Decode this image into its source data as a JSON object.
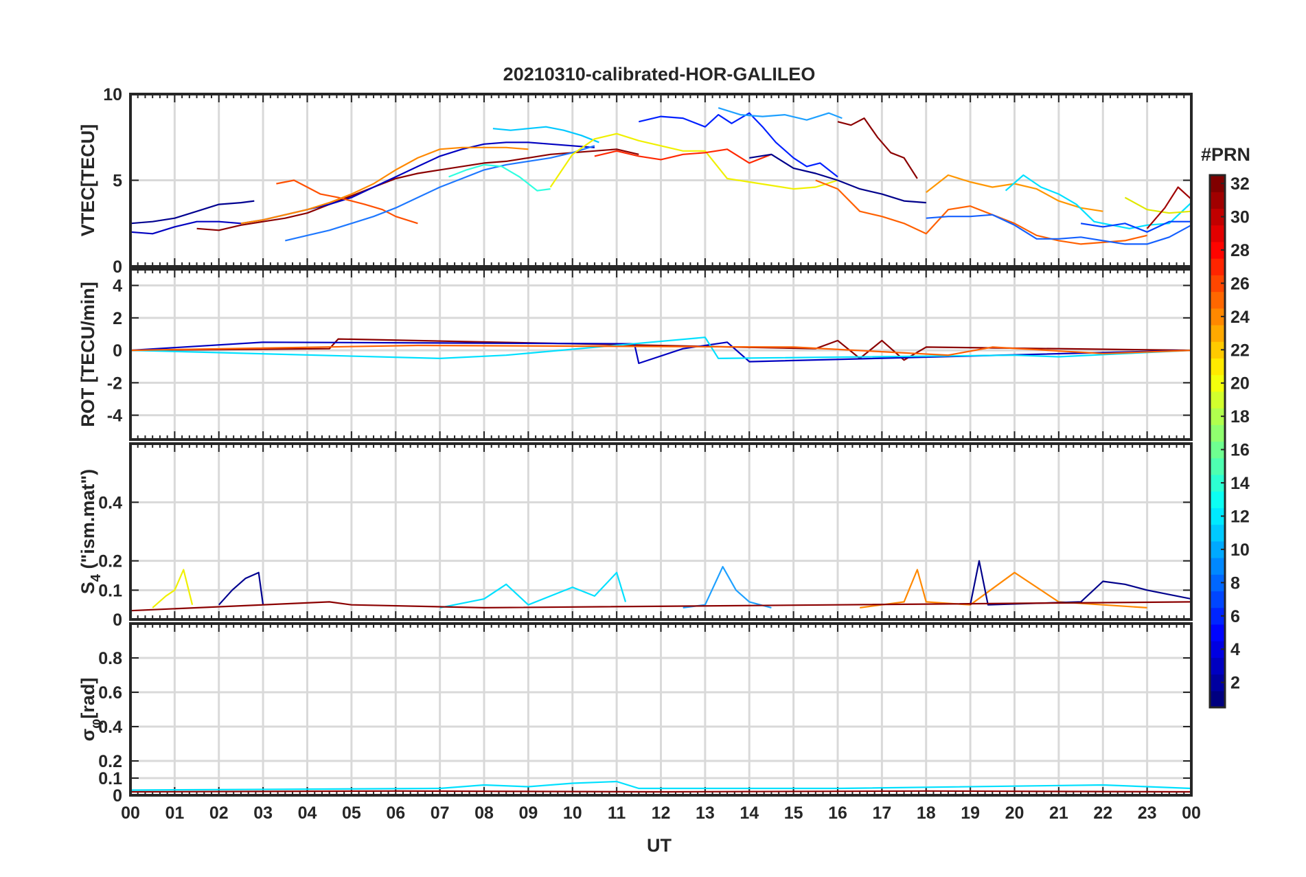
{
  "chart_data": {
    "type": "line",
    "title": "20210310-calibrated-HOR-GALILEO",
    "xlabel": "UT",
    "x_tick_labels": [
      "00",
      "01",
      "02",
      "03",
      "04",
      "05",
      "06",
      "07",
      "08",
      "09",
      "10",
      "11",
      "12",
      "13",
      "14",
      "15",
      "16",
      "17",
      "18",
      "19",
      "20",
      "21",
      "22",
      "23",
      "00"
    ],
    "xlim": [
      0,
      24
    ],
    "grid": true,
    "colorbar": {
      "title": "#PRN",
      "range": [
        1,
        32
      ],
      "tick_labels": [
        "2",
        "4",
        "6",
        "8",
        "10",
        "12",
        "14",
        "16",
        "18",
        "20",
        "22",
        "24",
        "26",
        "28",
        "30",
        "32"
      ],
      "colormap": "jet"
    },
    "panels": [
      {
        "ylabel": "VTEC[TECU]",
        "ylim": [
          0,
          10
        ],
        "y_tick_labels": [
          "0",
          "5",
          "10"
        ],
        "series": [
          {
            "prn": 31,
            "color": "#8b0000",
            "x": [
              1.5,
              2.0,
              2.5,
              3.0,
              3.5,
              4.0,
              4.5,
              5.0,
              5.5,
              6.0,
              6.5,
              7.0,
              7.5,
              8.0,
              8.5,
              9.0,
              9.5,
              10.0,
              10.5,
              11.0,
              11.5
            ],
            "y": [
              2.2,
              2.1,
              2.4,
              2.6,
              2.8,
              3.1,
              3.6,
              4.1,
              4.6,
              5.1,
              5.4,
              5.6,
              5.8,
              6.0,
              6.1,
              6.3,
              6.5,
              6.6,
              6.7,
              6.8,
              6.5
            ]
          },
          {
            "prn": 2,
            "color": "#000090",
            "x": [
              0.0,
              0.5,
              1.0,
              1.5,
              2.0,
              2.5,
              2.8
            ],
            "y": [
              2.5,
              2.6,
              2.8,
              3.2,
              3.6,
              3.7,
              3.8
            ]
          },
          {
            "prn": 3,
            "color": "#0000c0",
            "x": [
              0.0,
              0.5,
              1.0,
              1.5,
              2.0,
              2.5,
              3.0,
              3.5,
              4.0,
              4.5,
              5.0,
              5.5,
              6.0,
              6.5,
              7.0,
              7.5,
              8.0,
              8.5,
              9.0,
              9.5,
              10.0,
              10.5
            ],
            "y": [
              2.0,
              1.9,
              2.3,
              2.6,
              2.6,
              2.5,
              2.7,
              3.0,
              3.3,
              3.6,
              4.0,
              4.6,
              5.2,
              5.8,
              6.4,
              6.8,
              7.1,
              7.2,
              7.2,
              7.1,
              7.0,
              6.9
            ]
          },
          {
            "prn": 26,
            "color": "#ff5000",
            "x": [
              3.3,
              3.7,
              4.0,
              4.3,
              4.7,
              5.0,
              5.3,
              5.7,
              6.0,
              6.5
            ],
            "y": [
              4.8,
              5.0,
              4.6,
              4.2,
              4.0,
              3.8,
              3.6,
              3.3,
              2.9,
              2.5
            ]
          },
          {
            "prn": 8,
            "color": "#1e78ff",
            "x": [
              3.5,
              4.0,
              4.5,
              5.0,
              5.5,
              6.0,
              6.5,
              7.0,
              7.5,
              8.0,
              8.5,
              9.0,
              9.5,
              10.0,
              10.5
            ],
            "y": [
              1.5,
              1.8,
              2.1,
              2.5,
              2.9,
              3.4,
              4.0,
              4.6,
              5.1,
              5.6,
              5.9,
              6.1,
              6.3,
              6.6,
              7.0
            ]
          },
          {
            "prn": 23,
            "color": "#ff8800",
            "x": [
              2.5,
              3.0,
              3.5,
              4.0,
              4.5,
              5.0,
              5.5,
              6.0,
              6.5,
              7.0,
              7.5,
              8.0,
              8.5,
              9.0
            ],
            "y": [
              2.5,
              2.7,
              3.0,
              3.3,
              3.7,
              4.2,
              4.8,
              5.6,
              6.3,
              6.8,
              6.9,
              6.9,
              6.9,
              6.8
            ]
          },
          {
            "prn": 11,
            "color": "#00c8ff",
            "x": [
              8.2,
              8.6,
              9.0,
              9.4,
              9.8,
              10.2,
              10.6
            ],
            "y": [
              8.0,
              7.9,
              8.0,
              8.1,
              7.9,
              7.6,
              7.2
            ]
          },
          {
            "prn": 13,
            "color": "#30ffe0",
            "x": [
              7.2,
              7.6,
              8.0,
              8.4,
              8.8,
              9.2,
              9.5
            ],
            "y": [
              5.2,
              5.6,
              5.9,
              5.8,
              5.2,
              4.4,
              4.5
            ]
          },
          {
            "prn": 20,
            "color": "#f0f000",
            "x": [
              9.5,
              10.0,
              10.5,
              11.0,
              11.5,
              12.0,
              12.5,
              13.0,
              13.5,
              14.0,
              14.5,
              15.0,
              15.5,
              16.0
            ],
            "y": [
              4.6,
              6.5,
              7.4,
              7.7,
              7.3,
              7.0,
              6.7,
              6.7,
              5.1,
              4.9,
              4.7,
              4.5,
              4.6,
              5.0
            ]
          },
          {
            "prn": 27,
            "color": "#ff2800",
            "x": [
              10.5,
              11.0,
              11.5,
              12.0,
              12.5,
              13.0,
              13.5,
              14.0,
              14.5
            ],
            "y": [
              6.4,
              6.7,
              6.4,
              6.2,
              6.5,
              6.6,
              6.8,
              6.0,
              6.5
            ]
          },
          {
            "prn": 4,
            "color": "#0020ff",
            "x": [
              11.5,
              12.0,
              12.5,
              13.0,
              13.3,
              13.6,
              14.0,
              14.3,
              14.6,
              15.0,
              15.3,
              15.6,
              16.0
            ],
            "y": [
              8.4,
              8.7,
              8.6,
              8.1,
              8.8,
              8.3,
              8.9,
              8.1,
              7.2,
              6.3,
              5.8,
              6.0,
              5.2
            ]
          },
          {
            "prn": 10,
            "color": "#1ea0ff",
            "x": [
              13.3,
              13.8,
              14.3,
              14.8,
              15.3,
              15.8,
              16.1
            ],
            "y": [
              9.2,
              8.8,
              8.7,
              8.8,
              8.5,
              8.9,
              8.6
            ]
          },
          {
            "prn": 1,
            "color": "#00008b",
            "x": [
              14.0,
              14.5,
              15.0,
              15.5,
              16.0,
              16.5,
              17.0,
              17.5,
              18.0
            ],
            "y": [
              6.3,
              6.5,
              5.7,
              5.4,
              5.0,
              4.5,
              4.2,
              3.8,
              3.7
            ]
          },
          {
            "prn": 32,
            "color": "#8b0000",
            "x": [
              16.0,
              16.3,
              16.6,
              16.9,
              17.2,
              17.5,
              17.8
            ],
            "y": [
              8.4,
              8.2,
              8.6,
              7.5,
              6.6,
              6.3,
              5.1
            ]
          },
          {
            "prn": 25,
            "color": "#ff6000",
            "x": [
              15.5,
              16.0,
              16.5,
              17.0,
              17.5,
              18.0,
              18.5,
              19.0,
              19.5,
              20.0,
              20.5,
              21.0,
              21.5,
              22.0,
              22.5,
              23.0
            ],
            "y": [
              5.0,
              4.5,
              3.2,
              2.9,
              2.5,
              1.9,
              3.3,
              3.5,
              3.0,
              2.5,
              1.8,
              1.5,
              1.3,
              1.4,
              1.5,
              1.8
            ]
          },
          {
            "prn": 22,
            "color": "#ff9600",
            "x": [
              18.0,
              18.5,
              19.0,
              19.5,
              20.0,
              20.5,
              21.0,
              21.5,
              22.0
            ],
            "y": [
              4.3,
              5.3,
              4.9,
              4.6,
              4.8,
              4.5,
              3.8,
              3.4,
              3.2
            ]
          },
          {
            "prn": 12,
            "color": "#00e0ff",
            "x": [
              19.8,
              20.2,
              20.6,
              21.0,
              21.4,
              21.8,
              22.2,
              22.6,
              23.0,
              23.5,
              24.0
            ],
            "y": [
              4.4,
              5.3,
              4.6,
              4.2,
              3.6,
              2.6,
              2.4,
              2.2,
              2.4,
              2.5,
              3.7
            ]
          },
          {
            "prn": 19,
            "color": "#e0e800",
            "x": [
              22.5,
              23.0,
              23.5,
              24.0
            ],
            "y": [
              4.0,
              3.3,
              3.1,
              3.2
            ]
          },
          {
            "prn": 9,
            "color": "#1460ff",
            "x": [
              18.0,
              18.5,
              19.0,
              19.5,
              20.0,
              20.5,
              21.0,
              21.5,
              22.0,
              22.5,
              23.0,
              23.5,
              24.0
            ],
            "y": [
              2.8,
              2.9,
              2.9,
              3.0,
              2.4,
              1.6,
              1.6,
              1.7,
              1.5,
              1.3,
              1.3,
              1.7,
              2.4
            ]
          },
          {
            "prn": 30,
            "color": "#a00000",
            "x": [
              23.0,
              23.4,
              23.7,
              24.0
            ],
            "y": [
              2.2,
              3.4,
              4.6,
              3.9
            ]
          },
          {
            "prn": 6,
            "color": "#0040ff",
            "x": [
              21.5,
              22.0,
              22.5,
              23.0,
              23.5,
              24.0
            ],
            "y": [
              2.5,
              2.3,
              2.5,
              2.0,
              2.6,
              2.6
            ]
          }
        ]
      },
      {
        "ylabel": "ROT [TECU/min]",
        "ylim": [
          -5.5,
          5
        ],
        "y_tick_labels": [
          "-4",
          "-2",
          "0",
          "2",
          "4"
        ],
        "series": [
          {
            "prn": 31,
            "color": "#8b0000",
            "x": [
              0,
              4.5,
              4.7,
              15.5,
              16.0,
              16.5,
              17.0,
              17.5,
              18.0,
              24.0
            ],
            "y": [
              0,
              0.1,
              0.7,
              0.1,
              0.6,
              -0.5,
              0.6,
              -0.6,
              0.2,
              0
            ]
          },
          {
            "prn": 3,
            "color": "#0000c0",
            "x": [
              0,
              3.0,
              11.4,
              11.5,
              12.5,
              13.5,
              14.0,
              24.0
            ],
            "y": [
              0,
              0.5,
              0.4,
              -0.8,
              0.1,
              0.5,
              -0.7,
              0
            ]
          },
          {
            "prn": 12,
            "color": "#00e0ff",
            "x": [
              0,
              7.0,
              8.5,
              13.0,
              13.3,
              20.0,
              21.0,
              24.0
            ],
            "y": [
              0,
              -0.5,
              -0.3,
              0.8,
              -0.5,
              -0.3,
              -0.4,
              0
            ]
          },
          {
            "prn": 25,
            "color": "#ff6000",
            "x": [
              0,
              6.5,
              15.0,
              18.5,
              19.5,
              22.0,
              24.0
            ],
            "y": [
              0,
              0.3,
              0.2,
              -0.3,
              0.2,
              -0.2,
              0
            ]
          }
        ]
      },
      {
        "ylabel": "S4 (\"ism.mat\")",
        "ylabel_main": "S",
        "ylabel_sub": "4",
        "ylabel_tail": " (\"ism.mat\")",
        "ylim": [
          0,
          0.6
        ],
        "y_tick_labels": [
          "0",
          "0.1",
          "0.2",
          "0.4"
        ],
        "series": [
          {
            "prn": 20,
            "color": "#f0f000",
            "x": [
              0.5,
              0.8,
              1.0,
              1.2,
              1.4
            ],
            "y": [
              0.04,
              0.08,
              0.1,
              0.17,
              0.05
            ]
          },
          {
            "prn": 2,
            "color": "#000090",
            "x": [
              2.0,
              2.3,
              2.6,
              2.9,
              3.0
            ],
            "y": [
              0.05,
              0.1,
              0.14,
              0.16,
              0.05
            ]
          },
          {
            "prn": 12,
            "color": "#00e0ff",
            "x": [
              7.0,
              8.0,
              8.5,
              9.0,
              9.5,
              10.0,
              10.5,
              11.0,
              11.2
            ],
            "y": [
              0.04,
              0.07,
              0.12,
              0.05,
              0.08,
              0.11,
              0.08,
              0.16,
              0.06
            ]
          },
          {
            "prn": 10,
            "color": "#1ea0ff",
            "x": [
              12.5,
              13.0,
              13.4,
              13.7,
              14.0,
              14.5
            ],
            "y": [
              0.04,
              0.05,
              0.18,
              0.1,
              0.06,
              0.04
            ]
          },
          {
            "prn": 23,
            "color": "#ff8800",
            "x": [
              16.5,
              17.5,
              17.8,
              18.0,
              19.0,
              20.0,
              21.0,
              22.0,
              23.0
            ],
            "y": [
              0.04,
              0.06,
              0.17,
              0.06,
              0.05,
              0.16,
              0.06,
              0.05,
              0.04
            ]
          },
          {
            "prn": 1,
            "color": "#00008b",
            "x": [
              19.0,
              19.2,
              19.4,
              21.5,
              22.0,
              22.5,
              23.0,
              24.0
            ],
            "y": [
              0.05,
              0.2,
              0.05,
              0.06,
              0.13,
              0.12,
              0.1,
              0.07
            ]
          },
          {
            "prn": 31,
            "color": "#8b0000",
            "x": [
              0,
              4.5,
              5.0,
              8.0,
              16.0,
              24.0
            ],
            "y": [
              0.03,
              0.06,
              0.05,
              0.04,
              0.05,
              0.06
            ]
          }
        ]
      },
      {
        "ylabel": "σφ[rad]",
        "ylabel_main": "σ",
        "ylabel_sub": "φ",
        "ylabel_tail": "[rad]",
        "ylim": [
          0,
          1
        ],
        "y_tick_labels": [
          "0",
          "0.1",
          "0.2",
          "0.4",
          "0.6",
          "0.8"
        ],
        "series": [
          {
            "prn": 12,
            "color": "#00e0ff",
            "x": [
              0,
              7.0,
              8.0,
              9.0,
              10.0,
              11.0,
              11.5,
              13.0,
              16.0,
              22.0,
              23.0,
              24.0
            ],
            "y": [
              0.03,
              0.04,
              0.06,
              0.05,
              0.07,
              0.08,
              0.04,
              0.04,
              0.04,
              0.06,
              0.05,
              0.04
            ]
          },
          {
            "prn": 31,
            "color": "#8b0000",
            "x": [
              0,
              6.0,
              12.0,
              18.0,
              24.0
            ],
            "y": [
              0.02,
              0.025,
              0.02,
              0.025,
              0.02
            ]
          }
        ]
      }
    ]
  }
}
